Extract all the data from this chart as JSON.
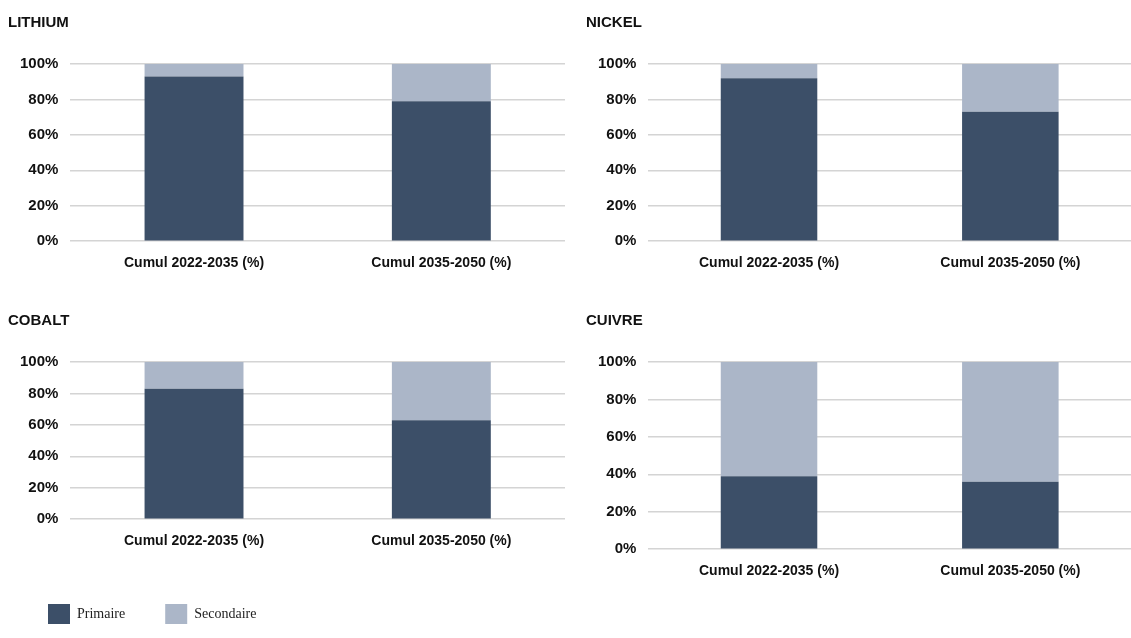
{
  "chart_data": [
    {
      "type": "bar",
      "title": "LITHIUM",
      "categories": [
        "Cumul 2022-2035 (%)",
        "Cumul 2035-2050 (%)"
      ],
      "stacked": true,
      "ylim": [
        0,
        100
      ],
      "yticks": [
        {
          "value": 0,
          "label": "0%"
        },
        {
          "value": 20,
          "label": "20%"
        },
        {
          "value": 40,
          "label": "40%"
        },
        {
          "value": 60,
          "label": "60%"
        },
        {
          "value": 80,
          "label": "80%"
        },
        {
          "value": 100,
          "label": "100%"
        }
      ],
      "grid": "y",
      "series": [
        {
          "color": "#3c4f68",
          "values": [
            93,
            79
          ]
        },
        {
          "color": "#abb6c8",
          "values": [
            7,
            21
          ]
        }
      ]
    },
    {
      "type": "bar",
      "title": "NICKEL",
      "categories": [
        "Cumul 2022-2035 (%)",
        "Cumul 2035-2050 (%)"
      ],
      "stacked": true,
      "ylim": [
        0,
        100
      ],
      "yticks": [
        {
          "value": 0,
          "label": "0%"
        },
        {
          "value": 20,
          "label": "20%"
        },
        {
          "value": 40,
          "label": "40%"
        },
        {
          "value": 60,
          "label": "60%"
        },
        {
          "value": 80,
          "label": "80%"
        },
        {
          "value": 100,
          "label": "100%"
        }
      ],
      "grid": "y",
      "series": [
        {
          "color": "#3c4f68",
          "values": [
            92,
            73
          ]
        },
        {
          "color": "#abb6c8",
          "values": [
            8,
            27
          ]
        }
      ]
    },
    {
      "type": "bar",
      "title": "COBALT",
      "categories": [
        "Cumul 2022-2035 (%)",
        "Cumul 2035-2050 (%)"
      ],
      "stacked": true,
      "ylim": [
        0,
        100
      ],
      "yticks": [
        {
          "value": 0,
          "label": "0%"
        },
        {
          "value": 20,
          "label": "20%"
        },
        {
          "value": 40,
          "label": "40%"
        },
        {
          "value": 60,
          "label": "60%"
        },
        {
          "value": 80,
          "label": "80%"
        },
        {
          "value": 100,
          "label": "100%"
        }
      ],
      "grid": "y",
      "legend": "bottom left",
      "series": [
        {
          "name": "Primaire",
          "color": "#3c4f68",
          "values": [
            83,
            63
          ]
        },
        {
          "name": "Secondaire",
          "color": "#abb6c8",
          "values": [
            17,
            37
          ]
        }
      ]
    },
    {
      "type": "bar",
      "title": "CUIVRE",
      "categories": [
        "Cumul 2022-2035 (%)",
        "Cumul 2035-2050 (%)"
      ],
      "stacked": true,
      "ylim": [
        0,
        100
      ],
      "yticks": [
        {
          "value": 0,
          "label": "0%"
        },
        {
          "value": 20,
          "label": "20%"
        },
        {
          "value": 40,
          "label": "40%"
        },
        {
          "value": 60,
          "label": "60%"
        },
        {
          "value": 80,
          "label": "80%"
        },
        {
          "value": 100,
          "label": "100%"
        }
      ],
      "grid": "y",
      "series": [
        {
          "color": "#3c4f68",
          "values": [
            39,
            36
          ]
        },
        {
          "color": "#abb6c8",
          "values": [
            61,
            64
          ]
        }
      ]
    }
  ]
}
